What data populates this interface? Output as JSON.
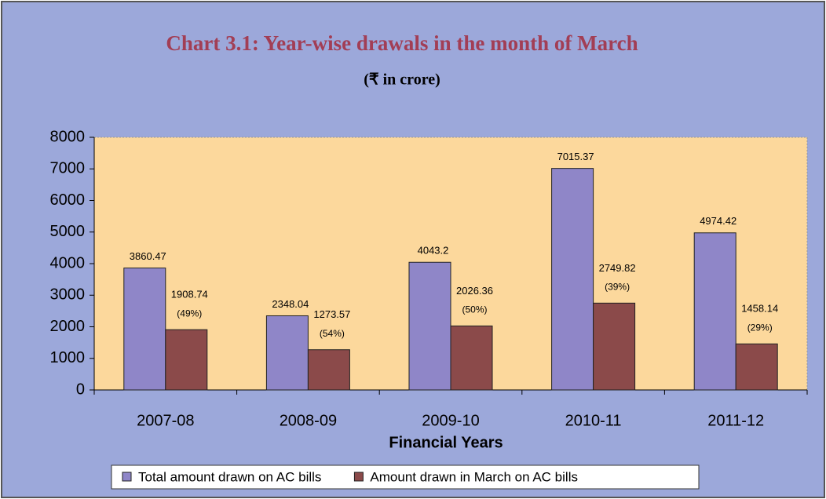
{
  "chart_data": {
    "type": "bar",
    "title": "Chart 3.1: Year-wise drawals in the month of March",
    "subtitle": "(₹  in crore)",
    "x_label": "Financial Years",
    "categories": [
      "2007-08",
      "2008-09",
      "2009-10",
      "2010-11",
      "2011-12"
    ],
    "series": [
      {
        "name": "Total amount drawn on AC bills",
        "color": "#8f86c8",
        "values": [
          3860.47,
          2348.04,
          4043.2,
          7015.37,
          4974.42
        ]
      },
      {
        "name": "Amount drawn in March on AC bills",
        "color": "#8b4a4a",
        "values": [
          1908.74,
          1273.57,
          2026.36,
          2749.82,
          1458.14
        ],
        "annotations": [
          "(49%)",
          "(54%)",
          "(50%)",
          "(39%)",
          "(29%)"
        ]
      }
    ],
    "ylim": [
      0,
      8000
    ],
    "yticks": [
      0,
      1000,
      2000,
      3000,
      4000,
      5000,
      6000,
      7000,
      8000
    ],
    "legend": "bottom"
  }
}
